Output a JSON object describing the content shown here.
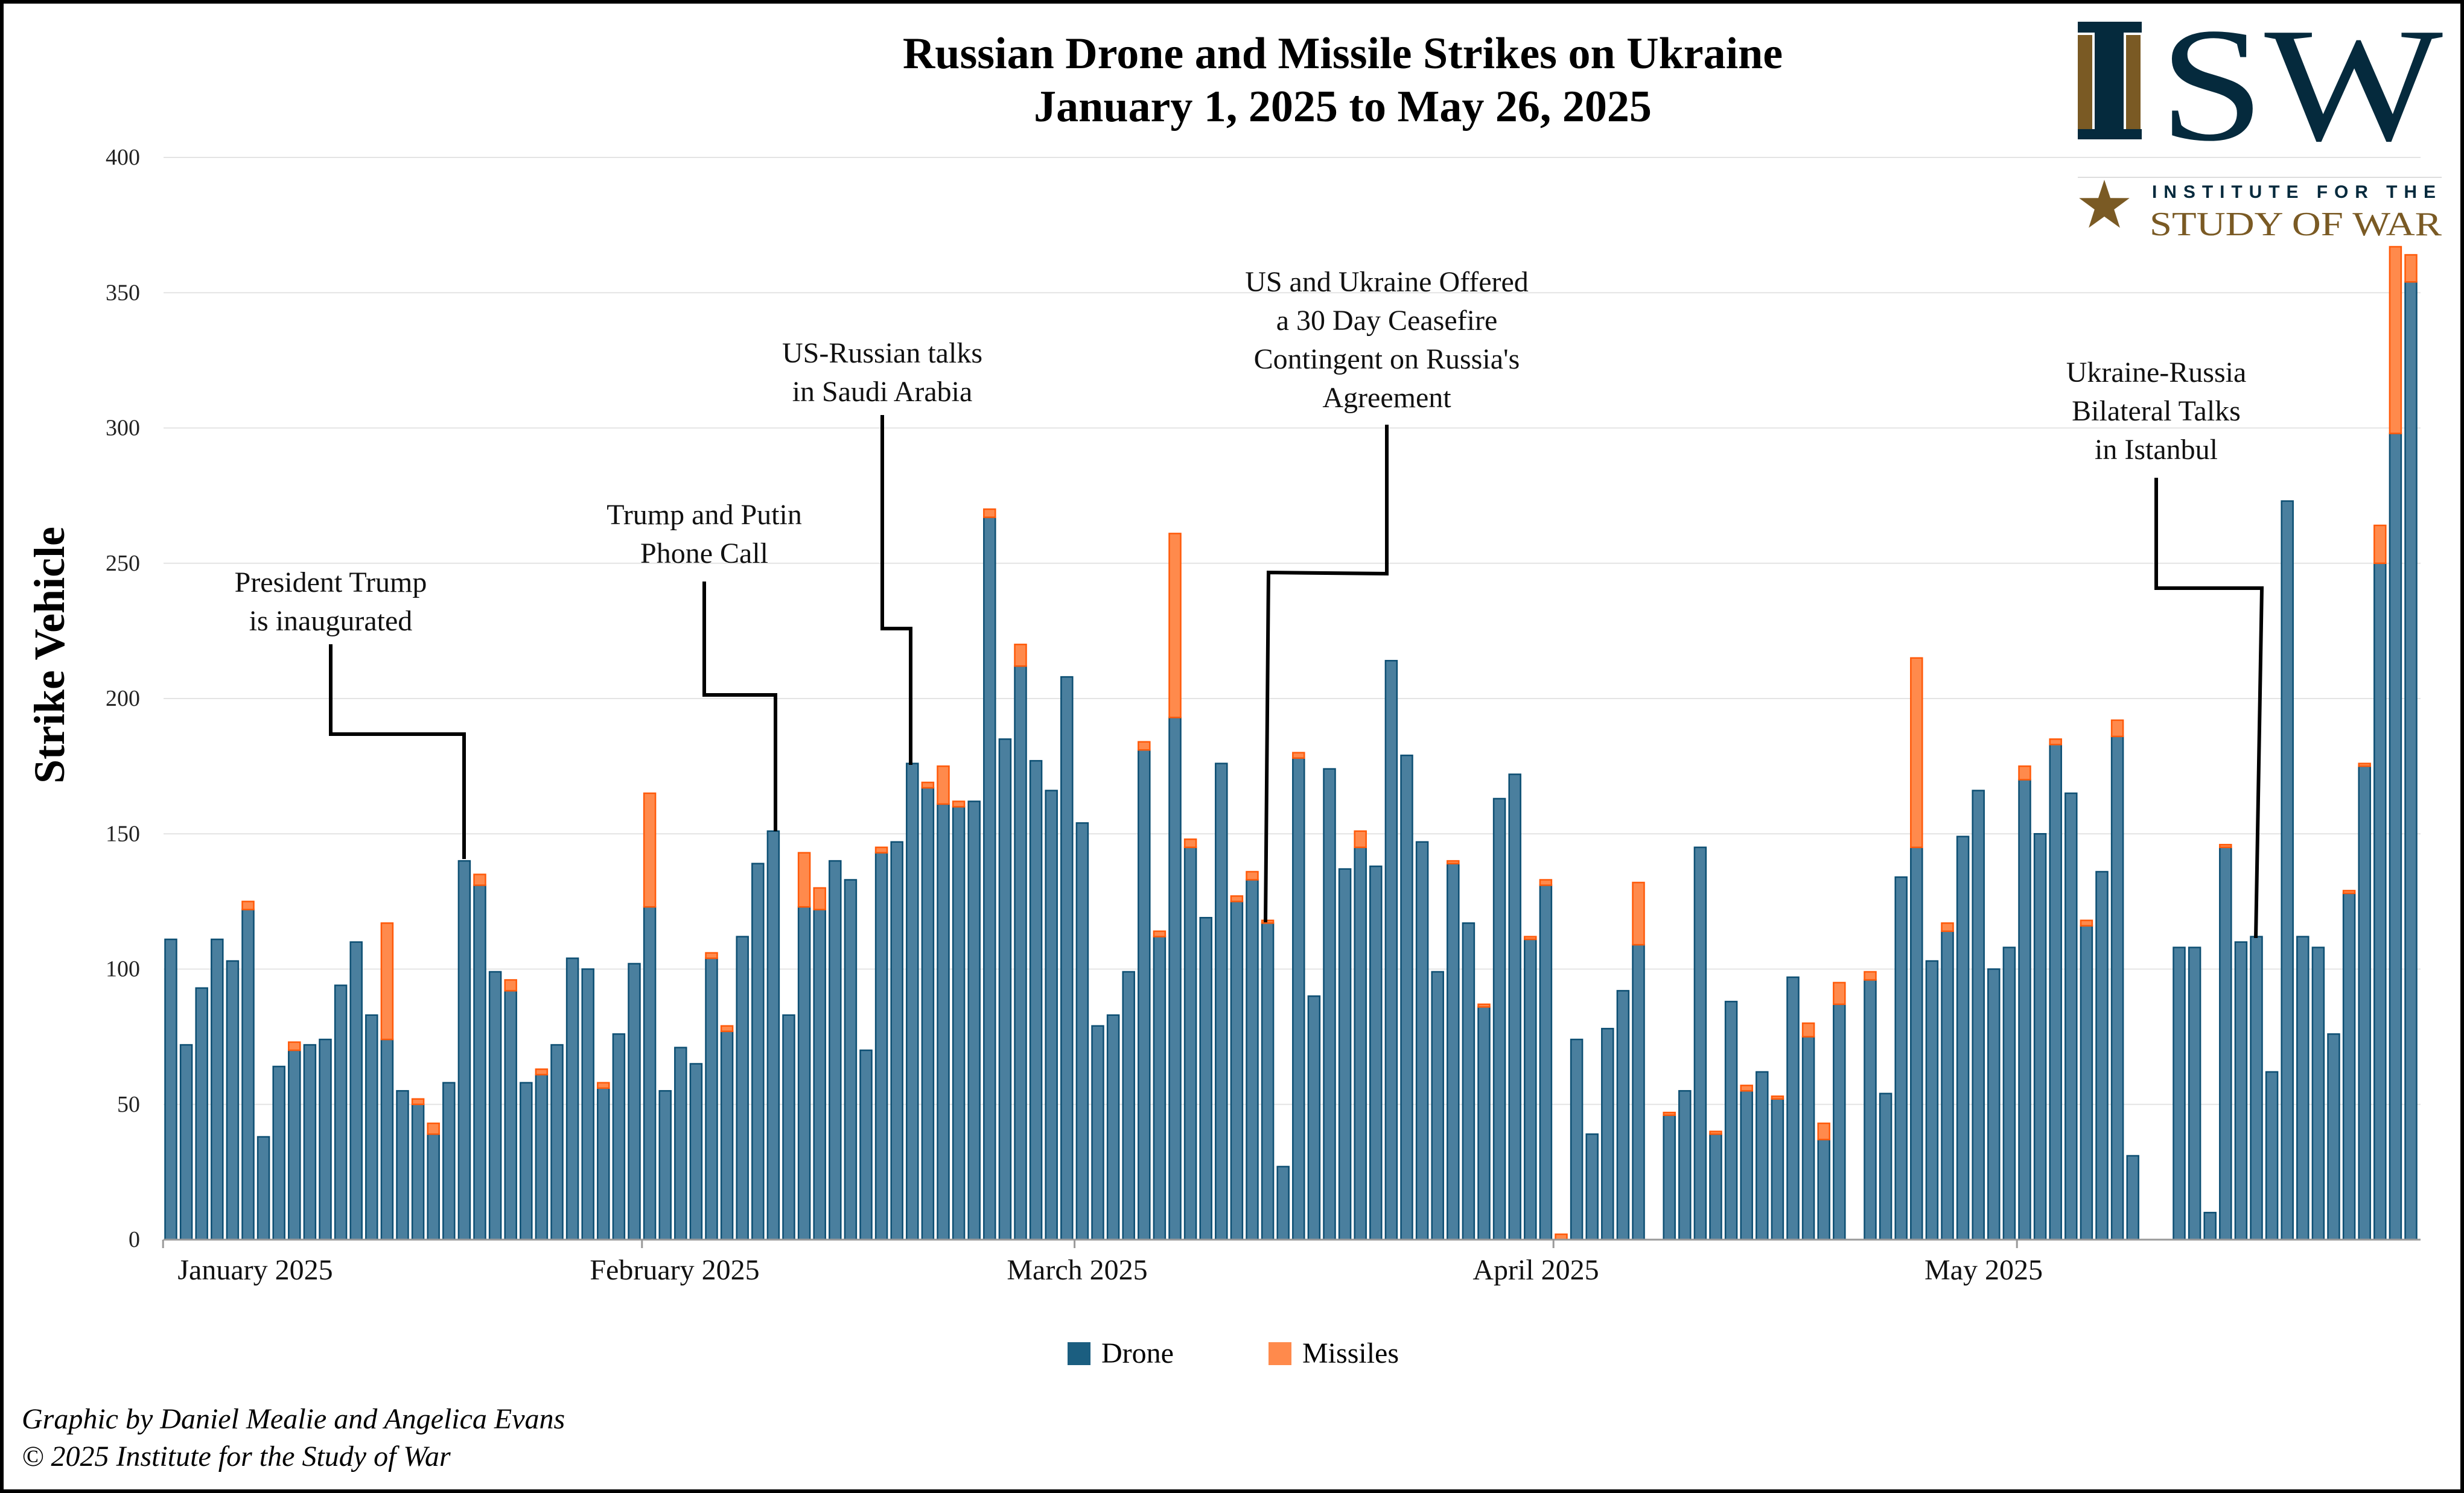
{
  "title": {
    "line1": "Russian Drone and Missile Strikes on Ukraine",
    "line2": "January 1, 2025 to May 26, 2025"
  },
  "logo": {
    "letters": "ISW",
    "subtitle_top": "INSTITUTE FOR THE",
    "subtitle_bottom": "STUDY OF WAR",
    "colors": {
      "navy": "#052a3d",
      "brown": "#7a5a24"
    }
  },
  "footer": {
    "credit": "Graphic by Daniel Mealie and Angelica Evans",
    "copyright": "© 2025 Institute for the Study of War"
  },
  "annotations": [
    {
      "date": "2025-01-20",
      "lines": [
        "President Trump",
        "is inaugurated"
      ]
    },
    {
      "date": "2025-02-09",
      "lines": [
        "Trump and Putin",
        "Phone Call"
      ]
    },
    {
      "date": "2025-02-18",
      "lines": [
        "US-Russian talks",
        "in Saudi Arabia"
      ]
    },
    {
      "date": "2025-03-13",
      "lines": [
        "US and Ukraine Offered",
        "a 30 Day Ceasefire",
        "Contingent on Russia's",
        "Agreement"
      ]
    },
    {
      "date": "2025-05-16",
      "lines": [
        "Ukraine-Russia",
        "Bilateral Talks",
        "in Istanbul"
      ]
    }
  ],
  "chart_data": {
    "type": "bar",
    "stacked": true,
    "title": "Russian Drone and Missile Strikes on Ukraine January 1, 2025 to May 26, 2025",
    "xlabel": "",
    "ylabel": "Strike Vehicle",
    "x_start": "2025-01-01",
    "x_end": "2025-05-26",
    "x_interval": "daily",
    "x_tick_labels": [
      "January 2025",
      "February 2025",
      "March 2025",
      "April 2025",
      "May 2025"
    ],
    "ylim": [
      0,
      400
    ],
    "y_ticks": [
      0,
      50,
      100,
      150,
      200,
      250,
      300,
      350,
      400
    ],
    "grid": true,
    "legend": "bottom-center",
    "series": [
      {
        "name": "Drone",
        "color": "#1b5e80",
        "values": [
          111,
          72,
          93,
          111,
          103,
          122,
          38,
          64,
          70,
          72,
          74,
          94,
          110,
          83,
          74,
          55,
          50,
          39,
          58,
          140,
          131,
          99,
          92,
          58,
          61,
          72,
          104,
          100,
          56,
          76,
          102,
          123,
          55,
          71,
          65,
          104,
          77,
          112,
          139,
          151,
          83,
          123,
          122,
          140,
          133,
          70,
          143,
          147,
          176,
          167,
          161,
          160,
          162,
          267,
          185,
          212,
          177,
          166,
          208,
          154,
          79,
          83,
          99,
          181,
          112,
          193,
          145,
          119,
          176,
          125,
          133,
          117,
          27,
          178,
          90,
          174,
          137,
          145,
          138,
          214,
          179,
          147,
          99,
          139,
          117,
          86,
          163,
          172,
          111,
          131,
          0,
          74,
          39,
          78,
          92,
          109,
          null,
          46,
          55,
          145,
          39,
          88,
          55,
          62,
          52,
          97,
          75,
          37,
          87,
          null,
          96,
          54,
          134,
          145,
          103,
          114,
          149,
          166,
          100,
          108,
          170,
          150,
          183,
          165,
          116,
          136,
          186,
          31,
          null,
          null,
          108,
          108,
          10,
          145,
          110,
          112,
          62,
          273,
          112,
          108,
          76,
          128,
          175,
          250,
          298,
          354
        ]
      },
      {
        "name": "Missiles",
        "color": "#ff8a4c",
        "values": [
          0,
          0,
          0,
          0,
          0,
          3,
          0,
          0,
          3,
          0,
          0,
          0,
          0,
          0,
          43,
          0,
          2,
          4,
          0,
          0,
          4,
          0,
          4,
          0,
          2,
          0,
          0,
          0,
          2,
          0,
          0,
          42,
          0,
          0,
          0,
          2,
          2,
          0,
          0,
          0,
          0,
          20,
          8,
          0,
          0,
          0,
          2,
          0,
          0,
          2,
          14,
          2,
          0,
          3,
          0,
          8,
          0,
          0,
          0,
          0,
          0,
          0,
          0,
          3,
          2,
          68,
          3,
          0,
          0,
          2,
          3,
          1,
          0,
          2,
          0,
          0,
          0,
          6,
          0,
          0,
          0,
          0,
          0,
          1,
          0,
          1,
          0,
          0,
          1,
          2,
          2,
          0,
          0,
          0,
          0,
          23,
          null,
          1,
          0,
          0,
          1,
          0,
          2,
          0,
          1,
          0,
          5,
          6,
          8,
          null,
          3,
          0,
          0,
          70,
          0,
          3,
          0,
          0,
          0,
          0,
          5,
          0,
          2,
          0,
          2,
          0,
          6,
          0,
          null,
          null,
          0,
          0,
          0,
          1,
          0,
          0,
          0,
          0,
          0,
          0,
          0,
          1,
          1,
          14,
          69,
          10
        ]
      }
    ]
  }
}
